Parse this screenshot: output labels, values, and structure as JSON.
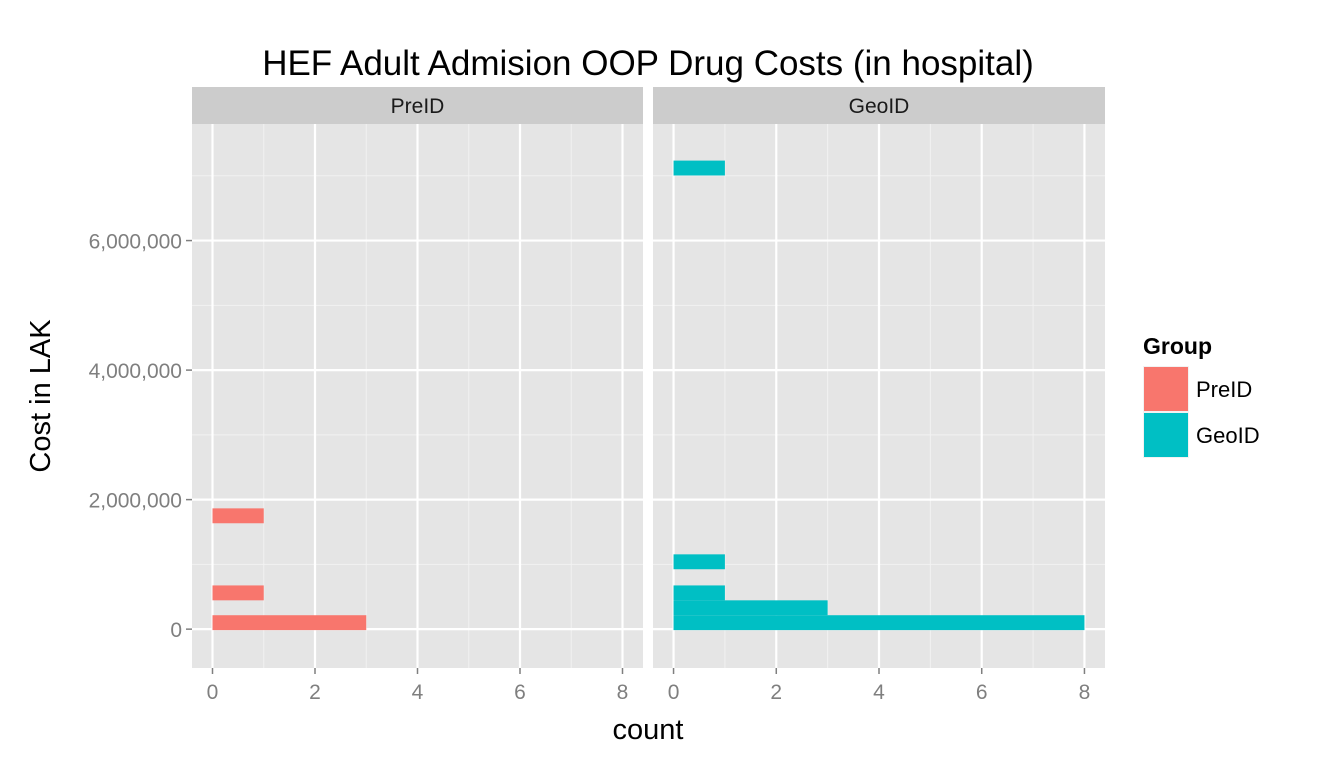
{
  "chart_data": {
    "type": "bar",
    "orientation": "horizontal",
    "title": "HEF Adult Admision OOP Drug Costs (in hospital)",
    "xlabel": "count",
    "ylabel": "Cost in LAK",
    "xlim": [
      -0.4,
      8.4
    ],
    "ylim": [
      -600000,
      7800000
    ],
    "x_ticks": [
      0,
      2,
      4,
      6,
      8
    ],
    "x_tick_labels": [
      "0",
      "2",
      "4",
      "6",
      "8"
    ],
    "y_ticks": [
      0,
      2000000,
      4000000,
      6000000
    ],
    "y_tick_labels": [
      "0",
      "2,000,000",
      "4,000,000",
      "6,000,000"
    ],
    "grid": true,
    "legend": {
      "title": "Group",
      "position": "right",
      "entries": [
        {
          "label": "PreID",
          "color": "#F8766D"
        },
        {
          "label": "GeoID",
          "color": "#00BFC4"
        }
      ]
    },
    "bin_width": 230000,
    "panels": [
      {
        "strip": "PreID",
        "color": "#F8766D",
        "bins": [
          {
            "center": 100000,
            "count": 3
          },
          {
            "center": 560000,
            "count": 1
          },
          {
            "center": 1750000,
            "count": 1
          }
        ]
      },
      {
        "strip": "GeoID",
        "color": "#00BFC4",
        "bins": [
          {
            "center": 100000,
            "count": 8
          },
          {
            "center": 330000,
            "count": 3
          },
          {
            "center": 560000,
            "count": 1
          },
          {
            "center": 1040000,
            "count": 1
          },
          {
            "center": 7120000,
            "count": 1
          }
        ]
      }
    ]
  }
}
